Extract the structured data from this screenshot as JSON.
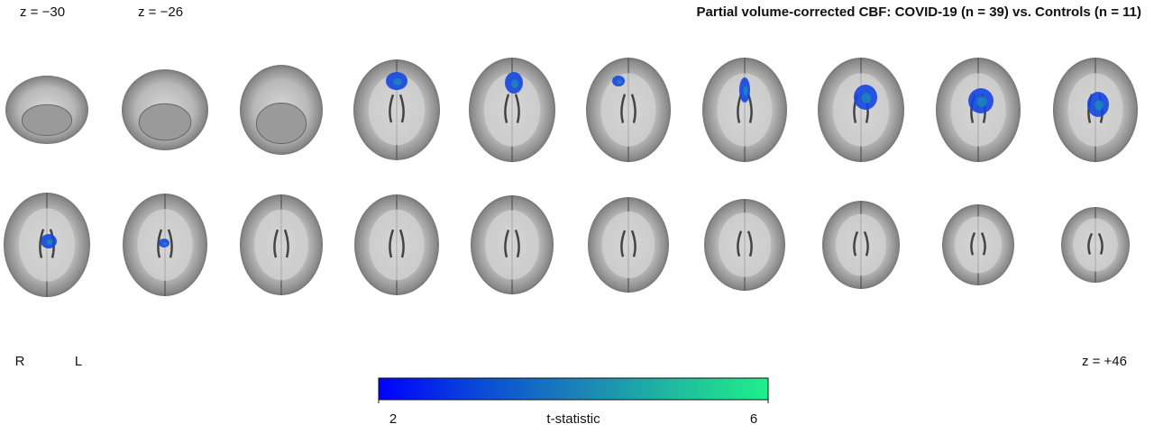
{
  "header": {
    "title": "Partial volume-corrected CBF: COVID-19 (n = 39) vs. Controls (n = 11)"
  },
  "slices": {
    "first_label": "z = −30",
    "second_label": "z = −26",
    "last_label": "z = +46"
  },
  "orientation": {
    "right": "R",
    "left": "L"
  },
  "colorbar": {
    "label": "t-statistic",
    "range": [
      2,
      6
    ],
    "ticks": [
      2,
      6
    ],
    "colors": [
      "#0000ff",
      "#0a48d8",
      "#1a80b8",
      "#20b8a0",
      "#1ff08a"
    ]
  }
}
